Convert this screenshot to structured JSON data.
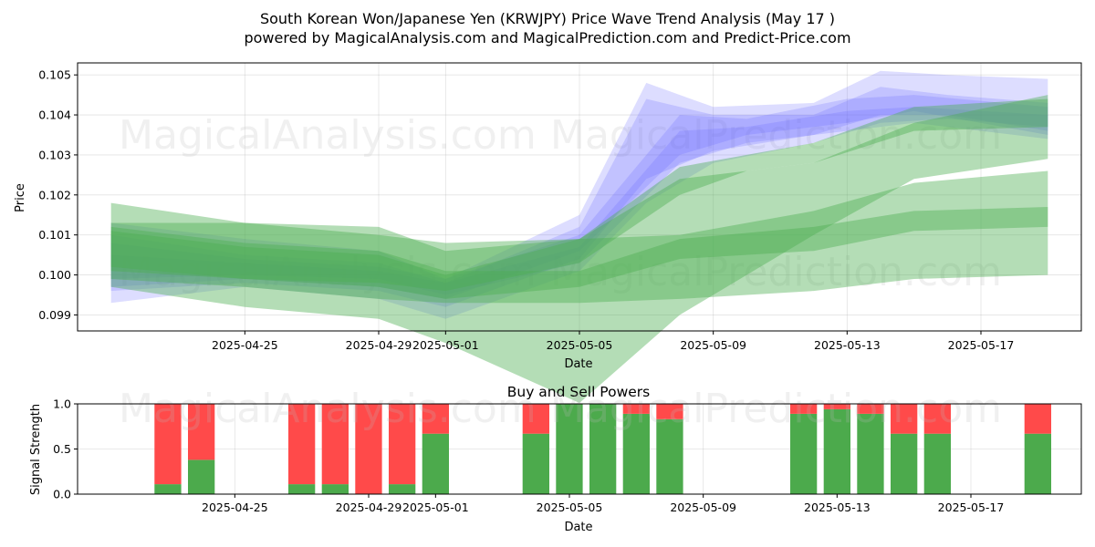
{
  "title_line1": "South Korean Won/Japanese Yen (KRWJPY) Price Wave Trend Analysis (May 17 )",
  "title_line2": "powered by MagicalAnalysis.com and MagicalPrediction.com and Predict-Price.com",
  "watermarks": [
    "MagicalAnalysis.com",
    "MagicalPrediction.com"
  ],
  "colors": {
    "blue_band": "#6666ff",
    "green_band": "#4caf50",
    "buy": "#4caa4c",
    "sell": "#ff4a4a"
  },
  "chart_data": [
    {
      "type": "area",
      "title": "",
      "xlabel": "Date",
      "ylabel": "Price",
      "x_ticks": [
        "2025-04-25",
        "2025-04-29",
        "2025-05-01",
        "2025-05-05",
        "2025-05-09",
        "2025-05-13",
        "2025-05-17"
      ],
      "y_ticks": [
        "0.099",
        "0.100",
        "0.101",
        "0.102",
        "0.103",
        "0.104",
        "0.105"
      ],
      "xlim": [
        "2025-04-20",
        "2025-05-20"
      ],
      "ylim": [
        0.0986,
        0.1053
      ],
      "grid": true,
      "bands": [
        {
          "group": "blue",
          "x": [
            "2025-04-21",
            "2025-04-25",
            "2025-04-29",
            "2025-05-01",
            "2025-05-05",
            "2025-05-07",
            "2025-05-09",
            "2025-05-12",
            "2025-05-14",
            "2025-05-16",
            "2025-05-19"
          ],
          "low": [
            0.0996,
            0.0998,
            0.0996,
            0.0992,
            0.1004,
            0.1024,
            0.1031,
            0.1035,
            0.104,
            0.104,
            0.1036
          ],
          "high": [
            0.101,
            0.1005,
            0.1003,
            0.0998,
            0.1012,
            0.1044,
            0.104,
            0.104,
            0.1047,
            0.1045,
            0.1043
          ]
        },
        {
          "group": "blue",
          "x": [
            "2025-04-21",
            "2025-04-25",
            "2025-04-29",
            "2025-05-01",
            "2025-05-05",
            "2025-05-07",
            "2025-05-09",
            "2025-05-12",
            "2025-05-14",
            "2025-05-16",
            "2025-05-19"
          ],
          "low": [
            0.0993,
            0.0997,
            0.0994,
            0.0989,
            0.1001,
            0.1018,
            0.1028,
            0.1033,
            0.1038,
            0.1039,
            0.1037
          ],
          "high": [
            0.1013,
            0.1009,
            0.1006,
            0.0999,
            0.1015,
            0.1048,
            0.1042,
            0.1043,
            0.1051,
            0.105,
            0.1049
          ]
        },
        {
          "group": "blue",
          "x": [
            "2025-04-21",
            "2025-04-25",
            "2025-04-29",
            "2025-05-01",
            "2025-05-05",
            "2025-05-08",
            "2025-05-10",
            "2025-05-13",
            "2025-05-15",
            "2025-05-19"
          ],
          "low": [
            0.0997,
            0.0999,
            0.0997,
            0.0994,
            0.1006,
            0.103,
            0.1035,
            0.1038,
            0.1041,
            0.1035
          ],
          "high": [
            0.1008,
            0.1004,
            0.1002,
            0.0999,
            0.101,
            0.104,
            0.1039,
            0.1044,
            0.1045,
            0.1042
          ]
        },
        {
          "group": "blue",
          "x": [
            "2025-04-21",
            "2025-04-25",
            "2025-04-29",
            "2025-05-01",
            "2025-05-05",
            "2025-05-08",
            "2025-05-10",
            "2025-05-13",
            "2025-05-15",
            "2025-05-19"
          ],
          "low": [
            0.0999,
            0.1,
            0.0999,
            0.0995,
            0.1003,
            0.1028,
            0.1033,
            0.1036,
            0.1038,
            0.1034
          ],
          "high": [
            0.1005,
            0.1003,
            0.1001,
            0.0998,
            0.1007,
            0.1036,
            0.1037,
            0.1041,
            0.1042,
            0.104
          ]
        },
        {
          "group": "green",
          "x": [
            "2025-04-21",
            "2025-04-25",
            "2025-04-29",
            "2025-05-01",
            "2025-05-05",
            "2025-05-08",
            "2025-05-12",
            "2025-05-15",
            "2025-05-19"
          ],
          "low": [
            0.0997,
            0.0992,
            0.0989,
            0.0983,
            0.0968,
            0.099,
            0.101,
            0.1024,
            0.1029
          ],
          "high": [
            0.1018,
            0.1013,
            0.1012,
            0.1006,
            0.1009,
            0.1024,
            0.1028,
            0.1038,
            0.1045
          ]
        },
        {
          "group": "green",
          "x": [
            "2025-04-21",
            "2025-04-25",
            "2025-04-29",
            "2025-05-01",
            "2025-05-05",
            "2025-05-08",
            "2025-05-12",
            "2025-05-15",
            "2025-05-19"
          ],
          "low": [
            0.0999,
            0.0997,
            0.0994,
            0.0993,
            0.0993,
            0.0994,
            0.0996,
            0.0999,
            0.1
          ],
          "high": [
            0.1013,
            0.1013,
            0.101,
            0.1008,
            0.1009,
            0.101,
            0.1016,
            0.1023,
            0.1026
          ]
        },
        {
          "group": "green",
          "x": [
            "2025-04-21",
            "2025-04-25",
            "2025-04-29",
            "2025-05-01",
            "2025-05-05",
            "2025-05-08",
            "2025-05-12",
            "2025-05-15",
            "2025-05-19"
          ],
          "low": [
            0.1002,
            0.0999,
            0.0997,
            0.0994,
            0.0997,
            0.1004,
            0.1006,
            0.1011,
            0.1012
          ],
          "high": [
            0.1012,
            0.1008,
            0.1006,
            0.1001,
            0.1001,
            0.1009,
            0.1012,
            0.1016,
            0.1017
          ]
        },
        {
          "group": "green",
          "x": [
            "2025-04-21",
            "2025-04-25",
            "2025-04-29",
            "2025-05-01",
            "2025-05-05",
            "2025-05-08",
            "2025-05-10",
            "2025-05-12",
            "2025-05-15",
            "2025-05-19"
          ],
          "low": [
            0.1001,
            0.0999,
            0.0998,
            0.0996,
            0.1003,
            0.102,
            0.1026,
            0.1028,
            0.1036,
            0.1037
          ],
          "high": [
            0.1011,
            0.1007,
            0.1005,
            0.1,
            0.1009,
            0.1027,
            0.103,
            0.1033,
            0.1042,
            0.1044
          ]
        }
      ]
    },
    {
      "type": "bar",
      "title": "Buy and Sell Powers",
      "xlabel": "Date",
      "ylabel": "Signal Strength",
      "x_ticks": [
        "2025-04-25",
        "2025-04-29",
        "2025-05-01",
        "2025-05-05",
        "2025-05-09",
        "2025-05-13",
        "2025-05-17"
      ],
      "y_ticks": [
        "0.0",
        "0.5",
        "1.0"
      ],
      "ylim": [
        0,
        1
      ],
      "categories": [
        "2025-04-23",
        "2025-04-24",
        "2025-04-27",
        "2025-04-28",
        "2025-04-29",
        "2025-04-30",
        "2025-05-01",
        "2025-05-04",
        "2025-05-05",
        "2025-05-06",
        "2025-05-07",
        "2025-05-08",
        "2025-05-12",
        "2025-05-13",
        "2025-05-14",
        "2025-05-15",
        "2025-05-16",
        "2025-05-19"
      ],
      "series": [
        {
          "name": "buy",
          "values": [
            0.11,
            0.38,
            0.11,
            0.11,
            0.0,
            0.11,
            0.67,
            0.67,
            1.0,
            1.0,
            0.89,
            0.83,
            0.89,
            0.94,
            0.89,
            0.67,
            0.67,
            0.67
          ]
        },
        {
          "name": "sell",
          "values": [
            0.89,
            0.62,
            0.89,
            0.89,
            1.0,
            0.89,
            0.33,
            0.33,
            0.0,
            0.0,
            0.11,
            0.17,
            0.11,
            0.06,
            0.11,
            0.33,
            0.33,
            0.33
          ]
        }
      ]
    }
  ]
}
